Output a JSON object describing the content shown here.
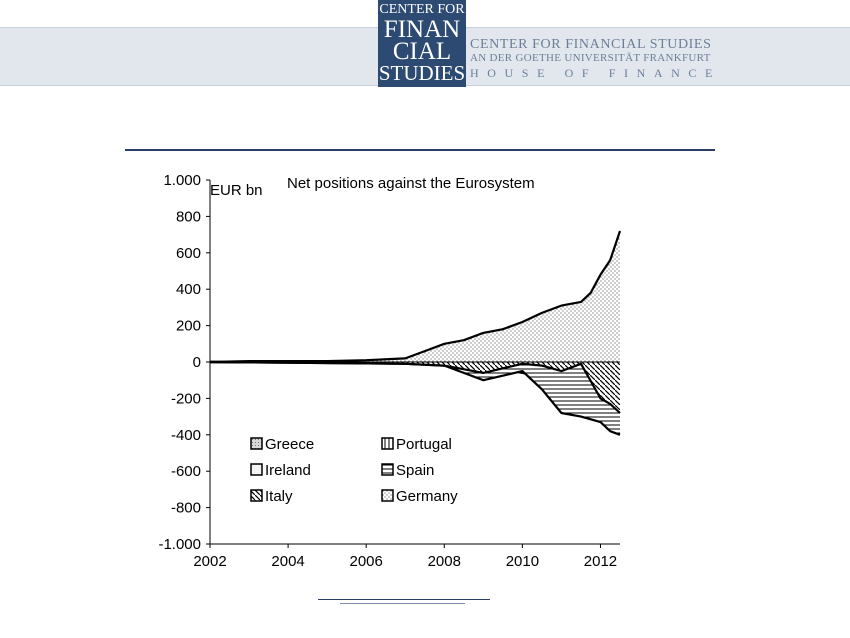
{
  "header": {
    "logo": [
      "CENTER FOR",
      "FINAN",
      "CIAL",
      "STUDIES"
    ],
    "org_name": "CENTER FOR FINANCIAL STUDIES",
    "org_sub": "AN DER GOETHE UNIVERSITÄT FRANKFURT",
    "org_house": "HOUSE OF FINANCE"
  },
  "colors": {
    "brand": "#2d4a72",
    "banner": "#e2e7ee",
    "rule": "#2b3f66"
  },
  "chart_data": {
    "type": "area",
    "title": "Net positions  against the Eurosystem",
    "ylabel": "EUR bn",
    "xlim": [
      2002,
      2012.5
    ],
    "ylim": [
      -1000,
      1000
    ],
    "x_ticks": [
      2002,
      2004,
      2006,
      2008,
      2010,
      2012
    ],
    "y_ticks": [
      1000,
      800,
      600,
      400,
      200,
      0,
      -200,
      -400,
      -600,
      -800,
      -1000
    ],
    "y_tick_labels": [
      "1.000",
      "800",
      "600",
      "400",
      "200",
      "0",
      "-200",
      "-400",
      "-600",
      "-800",
      "-1.000"
    ],
    "legend": [
      "Greece",
      "Portugal",
      "Ireland",
      "Spain",
      "Italy",
      "Germany"
    ],
    "legend_position": "lower-left",
    "series": [
      {
        "name": "Germany",
        "x": [
          2002.0,
          2003.0,
          2004.0,
          2005.0,
          2006.0,
          2007.0,
          2007.5,
          2008.0,
          2008.5,
          2009.0,
          2009.5,
          2010.0,
          2010.5,
          2011.0,
          2011.5,
          2011.75,
          2012.0,
          2012.25,
          2012.5
        ],
        "values": [
          0,
          5,
          5,
          5,
          10,
          20,
          60,
          100,
          120,
          160,
          180,
          220,
          270,
          310,
          330,
          380,
          480,
          560,
          720
        ]
      },
      {
        "name": "Greece",
        "x": [
          2002.0,
          2007.0,
          2008.0,
          2008.5,
          2009.0,
          2009.5,
          2010.0,
          2010.5,
          2011.0,
          2011.5,
          2012.0,
          2012.5
        ],
        "values": [
          0,
          -5,
          -10,
          -20,
          -30,
          -40,
          -60,
          -80,
          -100,
          -110,
          -105,
          -110
        ]
      },
      {
        "name": "Portugal",
        "x": [
          2002.0,
          2007.0,
          2008.0,
          2009.0,
          2010.0,
          2010.5,
          2011.0,
          2011.5,
          2012.0,
          2012.5
        ],
        "values": [
          0,
          -5,
          -10,
          -15,
          -50,
          -60,
          -70,
          -75,
          -75,
          -75
        ]
      },
      {
        "name": "Ireland",
        "x": [
          2002.0,
          2007.0,
          2008.0,
          2009.0,
          2010.0,
          2010.5,
          2011.0,
          2011.5,
          2012.0,
          2012.5
        ],
        "values": [
          0,
          -5,
          -10,
          -20,
          -50,
          -100,
          -140,
          -150,
          -160,
          -160
        ]
      },
      {
        "name": "Spain",
        "x": [
          2002.0,
          2007.0,
          2008.0,
          2008.5,
          2009.0,
          2010.0,
          2010.5,
          2011.0,
          2011.5,
          2012.0,
          2012.25,
          2012.5
        ],
        "values": [
          0,
          -10,
          -20,
          -60,
          -100,
          -50,
          -150,
          -280,
          -300,
          -330,
          -380,
          -400
        ]
      },
      {
        "name": "Italy",
        "x": [
          2002.0,
          2007.0,
          2008.0,
          2009.0,
          2010.0,
          2010.5,
          2011.0,
          2011.5,
          2012.0,
          2012.25,
          2012.5
        ],
        "values": [
          0,
          -10,
          -20,
          -60,
          -10,
          -20,
          -50,
          -10,
          -200,
          -230,
          -280
        ]
      }
    ],
    "grid": false
  }
}
